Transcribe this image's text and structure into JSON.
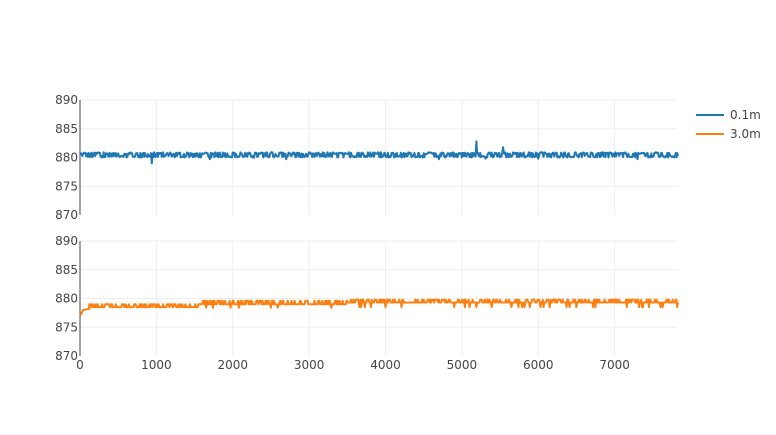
{
  "chart_data": {
    "type": "line",
    "layout": "two stacked subplots sharing x axis",
    "grid": true,
    "legend_position": "top-right",
    "x_axis": {
      "range": [
        0,
        7830
      ],
      "ticks": [
        0,
        1000,
        2000,
        3000,
        4000,
        5000,
        6000,
        7000
      ],
      "tick_labels": [
        "0",
        "1000",
        "2000",
        "3000",
        "4000",
        "5000",
        "6000",
        "7000"
      ]
    },
    "subplots": [
      {
        "y_range": [
          870,
          890
        ],
        "y_ticks": [
          870,
          875,
          880,
          885,
          890
        ],
        "y_tick_labels": [
          "870",
          "875",
          "880",
          "885",
          "890"
        ],
        "series": [
          {
            "name": "0.1m",
            "color": "#1f77b4",
            "baseline": 880.4,
            "noise_low": 880.0,
            "noise_high": 880.9,
            "spikes": [
              {
                "x": 940,
                "y": 879.0
              },
              {
                "x": 1700,
                "y": 879.7
              },
              {
                "x": 2700,
                "y": 879.7
              },
              {
                "x": 4700,
                "y": 879.7
              },
              {
                "x": 5190,
                "y": 882.8
              },
              {
                "x": 5310,
                "y": 879.8
              },
              {
                "x": 5540,
                "y": 881.8
              },
              {
                "x": 6000,
                "y": 879.8
              },
              {
                "x": 7300,
                "y": 879.7
              }
            ]
          }
        ]
      },
      {
        "y_range": [
          870,
          890
        ],
        "y_ticks": [
          870,
          875,
          880,
          885,
          890
        ],
        "y_tick_labels": [
          "870",
          "875",
          "880",
          "885",
          "890"
        ],
        "series": [
          {
            "name": "3.0m",
            "color": "#ff7f0e",
            "start_points": [
              {
                "x": 0,
                "y": 877.0
              },
              {
                "x": 40,
                "y": 878.0
              },
              {
                "x": 120,
                "y": 878.2
              }
            ],
            "segments": [
              {
                "x_start": 120,
                "x_end": 1560,
                "base": 878.5,
                "alt": 879.0
              },
              {
                "x_start": 1560,
                "x_end": 3500,
                "base": 879.0,
                "alt": 879.6,
                "dip": 878.4
              },
              {
                "x_start": 3500,
                "x_end": 7830,
                "base": 879.3,
                "alt": 879.8,
                "dip": 878.5
              }
            ]
          }
        ]
      }
    ],
    "legend": [
      {
        "name": "0.1m",
        "color": "#1f77b4"
      },
      {
        "name": "3.0m",
        "color": "#ff7f0e"
      }
    ]
  },
  "legend_labels": {
    "series_a": "0.1m",
    "series_b": "3.0m"
  }
}
